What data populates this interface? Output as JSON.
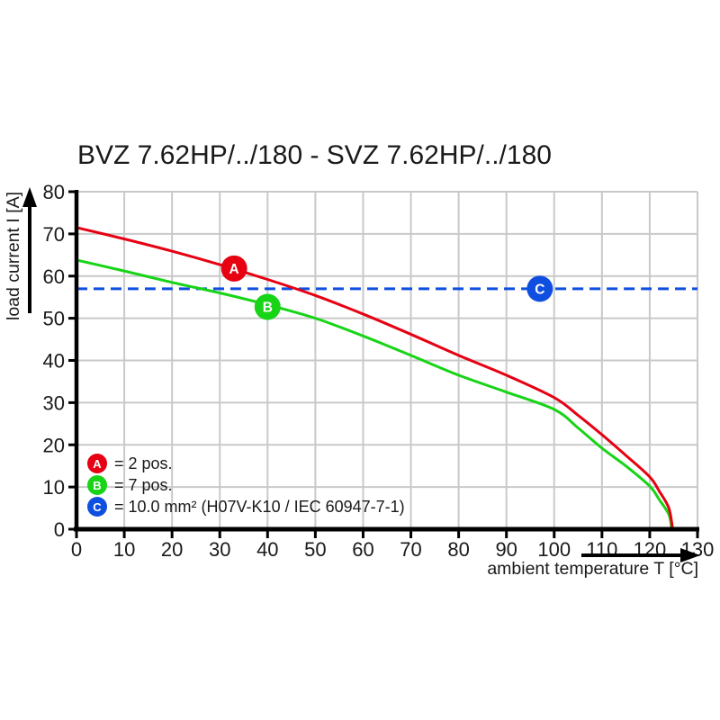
{
  "chart": {
    "title": "BVZ 7.62HP/../180 - SVZ 7.62HP/../180",
    "ylabel": "load current I [A]",
    "xlabel": "ambient temperature T [°C]"
  },
  "colors": {
    "background": "#ffffff",
    "grid": "#c9c9c9",
    "axis": "#000000",
    "text": "#1a1a1a",
    "red": "#e60012",
    "green": "#17d417",
    "blue": "#0f4fe0"
  },
  "chart_data": {
    "type": "line",
    "title": "BVZ 7.62HP/../180 - SVZ 7.62HP/../180",
    "xlabel": "ambient temperature T [°C]",
    "ylabel": "load current I [A]",
    "xlim": [
      0,
      130
    ],
    "ylim": [
      0,
      80
    ],
    "xticks": [
      0,
      10,
      20,
      30,
      40,
      50,
      60,
      70,
      80,
      90,
      100,
      110,
      120,
      130
    ],
    "yticks": [
      0,
      10,
      20,
      30,
      40,
      50,
      60,
      70,
      80
    ],
    "grid": true,
    "legend_position": "lower-left",
    "series": [
      {
        "name": "A = 2 pos.",
        "color": "#e60012",
        "style": "solid",
        "x": [
          0,
          10,
          20,
          30,
          40,
          50,
          60,
          70,
          80,
          90,
          100,
          105,
          110,
          115,
          120,
          122,
          124,
          124.8
        ],
        "y": [
          71.5,
          68.8,
          65.9,
          62.7,
          59.2,
          55.4,
          51.0,
          46.2,
          41.2,
          36.5,
          31.2,
          27.0,
          22.4,
          17.5,
          12.4,
          9.0,
          5.0,
          0
        ]
      },
      {
        "name": "B = 7 pos.",
        "color": "#17d417",
        "style": "solid",
        "x": [
          0,
          10,
          20,
          30,
          40,
          50,
          60,
          70,
          80,
          90,
          100,
          105,
          110,
          115,
          120,
          122,
          124,
          124.6
        ],
        "y": [
          63.8,
          61.2,
          58.5,
          56.0,
          53.2,
          50.0,
          45.8,
          41.2,
          36.5,
          32.5,
          28.4,
          24.0,
          19.2,
          15.0,
          10.2,
          7.0,
          3.5,
          0
        ]
      },
      {
        "name": "C = 10.0 mm² (H07V-K10 / IEC 60947-7-1)",
        "color": "#0f4fe0",
        "style": "dashed",
        "x": [
          0,
          130
        ],
        "y": [
          57,
          57
        ]
      }
    ],
    "markers": [
      {
        "label": "A",
        "x": 33,
        "y": 61.8,
        "color": "#e60012"
      },
      {
        "label": "B",
        "x": 40,
        "y": 52.7,
        "color": "#17d417"
      },
      {
        "label": "C",
        "x": 97,
        "y": 57.0,
        "color": "#0f4fe0"
      }
    ]
  },
  "legend": {
    "items": [
      {
        "symbol": "A",
        "color": "#e60012",
        "label": "= 2 pos."
      },
      {
        "symbol": "B",
        "color": "#17d417",
        "label": "= 7 pos."
      },
      {
        "symbol": "C",
        "color": "#0f4fe0",
        "label": "= 10.0 mm² (H07V-K10 / IEC 60947-7-1)"
      }
    ]
  }
}
